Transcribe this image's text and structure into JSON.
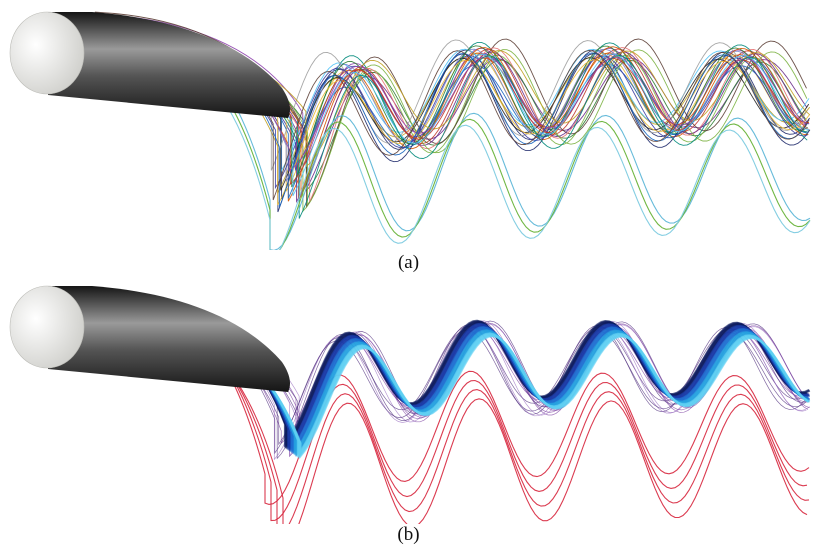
{
  "figure": {
    "panels": [
      {
        "id": "a",
        "caption": "(a)",
        "cylinder_colors": {
          "cap": "#f2f2f0",
          "body_dark": "#151515",
          "body_light": "#9a9a9a"
        },
        "line_palette": [
          "#1f2a6b",
          "#3b3b9e",
          "#6a2c8a",
          "#2e7d32",
          "#7cb342",
          "#c0a020",
          "#e8b830",
          "#d35400",
          "#c0392b",
          "#8e44ad",
          "#1565c0",
          "#4fc3f7",
          "#00897b",
          "#5d4037",
          "#212121",
          "#9e9e9e",
          "#e57373",
          "#7986cb"
        ]
      },
      {
        "id": "b",
        "caption": "(b)",
        "cylinder_colors": {
          "cap": "#f2f2f0",
          "body_dark": "#151515",
          "body_light": "#9a9a9a"
        },
        "band_colors": [
          "#0d1b5e",
          "#1a3aa8",
          "#1f6fd1",
          "#27a3e0",
          "#5ed0f2"
        ],
        "outlier_color": "#d7263d",
        "thin_line_colors": [
          "#7b3fa0",
          "#4b2a7a",
          "#9a6fc0"
        ]
      }
    ]
  }
}
